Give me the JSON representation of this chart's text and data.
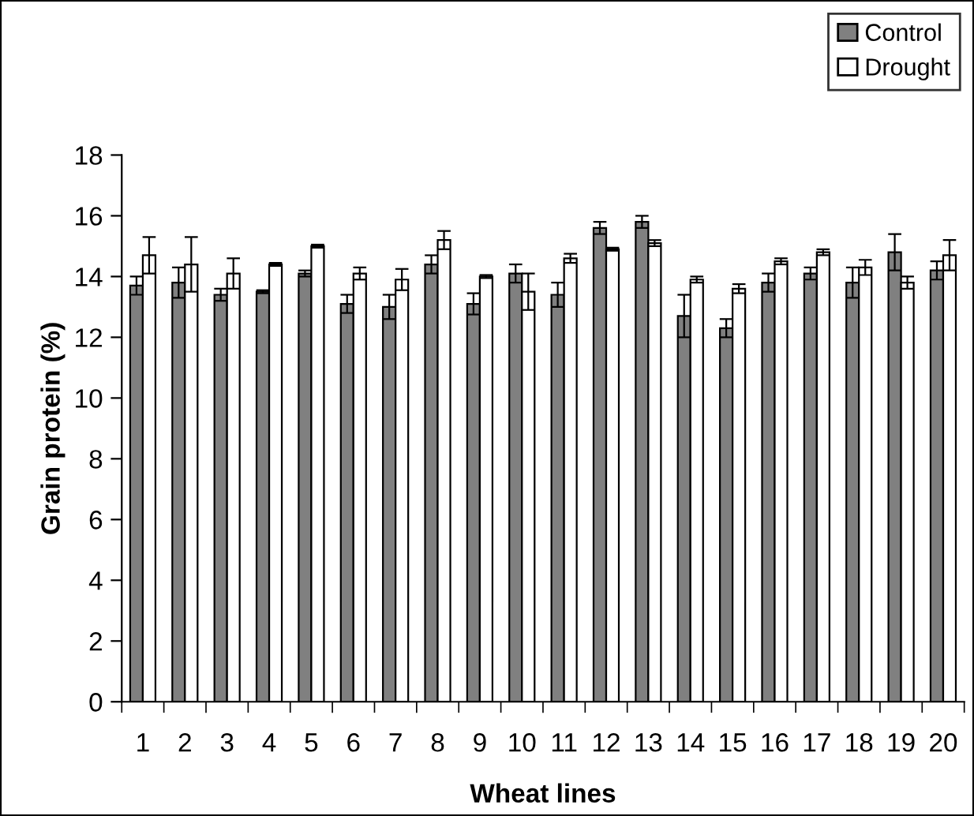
{
  "chart_data": {
    "type": "bar",
    "xlabel": "Wheat lines",
    "ylabel": "Grain protein (%)",
    "categories": [
      "1",
      "2",
      "3",
      "4",
      "5",
      "6",
      "7",
      "8",
      "9",
      "10",
      "11",
      "12",
      "13",
      "14",
      "15",
      "16",
      "17",
      "18",
      "19",
      "20"
    ],
    "series": [
      {
        "name": "Control",
        "color": "#808080",
        "values": [
          13.7,
          13.8,
          13.4,
          13.5,
          14.1,
          13.1,
          13.0,
          14.4,
          13.1,
          14.1,
          13.4,
          15.6,
          15.8,
          12.7,
          12.3,
          13.8,
          14.1,
          13.8,
          14.8,
          14.2
        ],
        "errors": [
          0.3,
          0.5,
          0.2,
          0.05,
          0.1,
          0.3,
          0.4,
          0.3,
          0.35,
          0.3,
          0.4,
          0.2,
          0.2,
          0.7,
          0.3,
          0.3,
          0.2,
          0.5,
          0.6,
          0.3
        ]
      },
      {
        "name": "Drought",
        "color": "#ffffff",
        "values": [
          14.7,
          14.4,
          14.1,
          14.4,
          15.0,
          14.1,
          13.9,
          15.2,
          14.0,
          13.5,
          14.6,
          14.9,
          15.1,
          13.9,
          13.6,
          14.5,
          14.8,
          14.3,
          13.8,
          14.7
        ],
        "errors": [
          0.6,
          0.9,
          0.5,
          0.05,
          0.05,
          0.2,
          0.35,
          0.3,
          0.05,
          0.6,
          0.15,
          0.05,
          0.1,
          0.1,
          0.15,
          0.1,
          0.1,
          0.25,
          0.2,
          0.5
        ]
      }
    ],
    "ylim": [
      0,
      18
    ],
    "yticks": [
      0,
      2,
      4,
      6,
      8,
      10,
      12,
      14,
      16,
      18
    ],
    "grid": false,
    "legend": "top right"
  }
}
